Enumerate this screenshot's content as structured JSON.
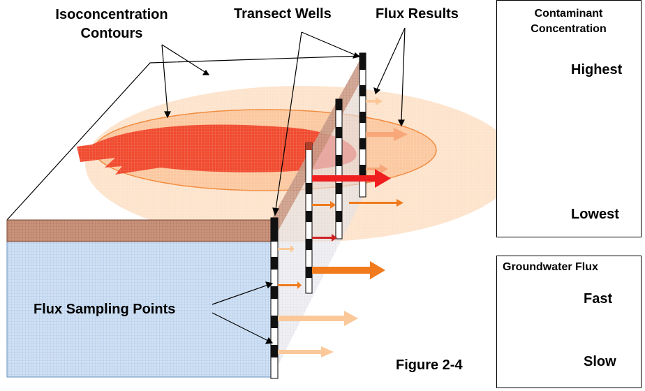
{
  "labels": {
    "contours": "Isoconcentration Contours",
    "contours_line1": "Isoconcentration",
    "contours_line2": "Contours",
    "transect_wells": "Transect Wells",
    "flux_results": "Flux Results",
    "flux_sampling_points": "Flux Sampling Points",
    "figure": "Figure 2-4"
  },
  "legend_concentration": {
    "title_line1": "Contaminant",
    "title_line2": "Concentration",
    "highest": "Highest",
    "lowest": "Lowest",
    "color_high": "#ee1c1c",
    "color_low": "#fbc89a"
  },
  "legend_flux": {
    "title": "Groundwater Flux",
    "fast": "Fast",
    "slow": "Slow",
    "arrow_color": "#f07a1c"
  },
  "colors": {
    "plume_core": "#f04a2e",
    "plume_mid": "#fbc8a0",
    "plume_outer": "#fde3cc",
    "soil": "#c8907a",
    "aquifer": "#c8dcf2",
    "well_dark": "#111111"
  }
}
